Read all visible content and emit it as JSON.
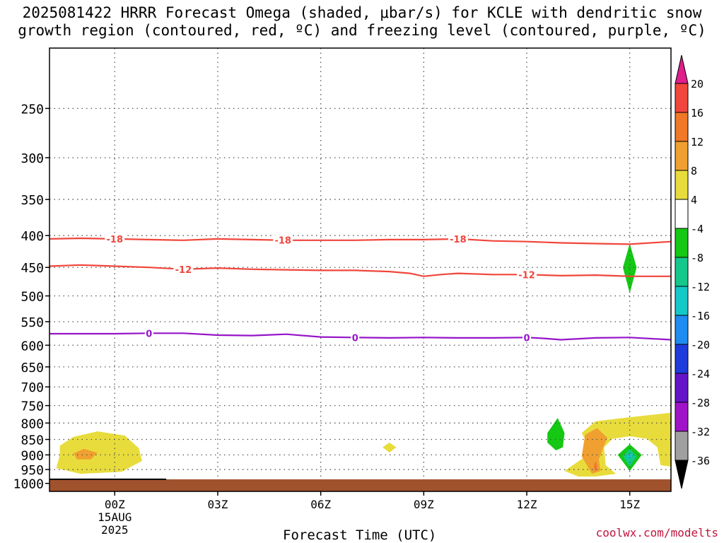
{
  "title": "2025081422 HRRR Forecast Omega (shaded, μbar/s) for KCLE with dendritic snow growth region (contoured, red, ºC) and freezing level (contoured, purple, ºC)",
  "watermark": "coolwx.com/modelts",
  "chart_data": {
    "type": "contour",
    "xlabel": "Forecast Time (UTC)",
    "ylabel": "",
    "x_range_hours": [
      -1.9,
      16.2
    ],
    "x_ticks": [
      {
        "hour": 0,
        "label": "00Z",
        "sub": [
          "15AUG",
          "2025"
        ]
      },
      {
        "hour": 3,
        "label": "03Z",
        "sub": []
      },
      {
        "hour": 6,
        "label": "06Z",
        "sub": []
      },
      {
        "hour": 9,
        "label": "09Z",
        "sub": []
      },
      {
        "hour": 12,
        "label": "12Z",
        "sub": []
      },
      {
        "hour": 15,
        "label": "15Z",
        "sub": []
      }
    ],
    "y_range_hpa": [
      1030,
      200
    ],
    "y_scale": "log",
    "y_ticks": [
      250,
      300,
      350,
      400,
      450,
      500,
      550,
      600,
      650,
      700,
      750,
      800,
      850,
      900,
      950,
      1000
    ],
    "grid": true,
    "ground_pressure_hpa": 985,
    "colorbar": {
      "labels": [
        "20",
        "16",
        "12",
        "8",
        "4",
        "-4",
        "-8",
        "-12",
        "-16",
        "-20",
        "-24",
        "-28",
        "-32",
        "-36"
      ],
      "bins": [
        {
          "range": "above 20",
          "color": "#e01e8c"
        },
        {
          "range": "16 to 20",
          "color": "#f0463c"
        },
        {
          "range": "12 to 16",
          "color": "#f07828"
        },
        {
          "range": "8 to 12",
          "color": "#f0a030"
        },
        {
          "range": "4 to 8",
          "color": "#e8dc3c"
        },
        {
          "range": "-4 to 4",
          "color": "#ffffff"
        },
        {
          "range": "-8 to -4",
          "color": "#14c814"
        },
        {
          "range": "-12 to -8",
          "color": "#14c88c"
        },
        {
          "range": "-16 to -12",
          "color": "#14c8c8"
        },
        {
          "range": "-20 to -16",
          "color": "#1e8cf0"
        },
        {
          "range": "-24 to -20",
          "color": "#1e3cdc"
        },
        {
          "range": "-28 to -24",
          "color": "#6414c8"
        },
        {
          "range": "-32 to -28",
          "color": "#a014c8"
        },
        {
          "range": "-36 to -32",
          "color": "#a0a0a0"
        },
        {
          "range": "below -36",
          "color": "#000000"
        }
      ]
    },
    "contours": [
      {
        "series": "dendritic",
        "value": -18,
        "label": "-18",
        "color": "#f0463c",
        "labels_at_hours": [
          0,
          4.9,
          10
        ],
        "points": [
          [
            -1.9,
            405
          ],
          [
            -1,
            404
          ],
          [
            0,
            405
          ],
          [
            1,
            406
          ],
          [
            2,
            407
          ],
          [
            3,
            405
          ],
          [
            4,
            406
          ],
          [
            5,
            407
          ],
          [
            6,
            407
          ],
          [
            7,
            407
          ],
          [
            8,
            406
          ],
          [
            9,
            406
          ],
          [
            10,
            405
          ],
          [
            11,
            408
          ],
          [
            12,
            409
          ],
          [
            13,
            411
          ],
          [
            14,
            412
          ],
          [
            15,
            413
          ],
          [
            16.2,
            409
          ]
        ]
      },
      {
        "series": "dendritic",
        "value": -12,
        "label": "-12",
        "color": "#f0463c",
        "labels_at_hours": [
          2,
          12
        ],
        "points": [
          [
            -1.9,
            448
          ],
          [
            -1,
            446
          ],
          [
            0,
            448
          ],
          [
            1,
            450
          ],
          [
            2,
            453
          ],
          [
            3,
            451
          ],
          [
            4,
            453
          ],
          [
            5,
            454
          ],
          [
            6,
            455
          ],
          [
            7,
            455
          ],
          [
            8,
            457
          ],
          [
            8.6,
            460
          ],
          [
            9,
            465
          ],
          [
            9.5,
            462
          ],
          [
            10,
            460
          ],
          [
            11,
            462
          ],
          [
            12,
            462
          ],
          [
            13,
            464
          ],
          [
            14,
            463
          ],
          [
            15,
            465
          ],
          [
            16.2,
            465
          ]
        ]
      },
      {
        "series": "freezing level",
        "value": 0,
        "label": "0",
        "color": "#9614c8",
        "labels_at_hours": [
          1,
          7,
          12
        ],
        "points": [
          [
            -1.9,
            575
          ],
          [
            -1,
            575
          ],
          [
            0,
            575
          ],
          [
            1,
            574
          ],
          [
            2,
            574
          ],
          [
            3,
            578
          ],
          [
            4,
            579
          ],
          [
            5,
            576
          ],
          [
            6,
            582
          ],
          [
            7,
            583
          ],
          [
            8,
            584
          ],
          [
            9,
            583
          ],
          [
            10,
            584
          ],
          [
            11,
            584
          ],
          [
            12,
            583
          ],
          [
            12.5,
            585
          ],
          [
            13,
            588
          ],
          [
            14,
            584
          ],
          [
            15,
            583
          ],
          [
            16.2,
            588
          ]
        ]
      }
    ],
    "shaded_areas": [
      {
        "value_bin": "4 to 8",
        "color": "#e8dc3c",
        "points": [
          [
            -1.6,
            870
          ],
          [
            -1.2,
            842
          ],
          [
            -0.5,
            825
          ],
          [
            0.3,
            838
          ],
          [
            0.7,
            878
          ],
          [
            0.8,
            920
          ],
          [
            0.2,
            958
          ],
          [
            -1,
            965
          ],
          [
            -1.7,
            945
          ],
          [
            -1.6,
            900
          ]
        ]
      },
      {
        "value_bin": "8 to 12",
        "color": "#f0a030",
        "points": [
          [
            -1.2,
            895
          ],
          [
            -0.9,
            880
          ],
          [
            -0.5,
            893
          ],
          [
            -0.7,
            915
          ],
          [
            -1.1,
            915
          ]
        ]
      },
      {
        "value_bin": "4 to 8",
        "color": "#e8dc3c",
        "points": [
          [
            7.8,
            875
          ],
          [
            8,
            860
          ],
          [
            8.2,
            875
          ],
          [
            8,
            892
          ]
        ]
      },
      {
        "value_bin": "-8 to -4",
        "color": "#14c814",
        "points": [
          [
            12.6,
            830
          ],
          [
            12.9,
            785
          ],
          [
            13.1,
            830
          ],
          [
            13.05,
            875
          ],
          [
            12.85,
            885
          ],
          [
            12.6,
            860
          ]
        ]
      },
      {
        "value_bin": "-8 to -4",
        "color": "#14c814",
        "points": [
          [
            14.8,
            450
          ],
          [
            15,
            412
          ],
          [
            15.2,
            450
          ],
          [
            15,
            495
          ]
        ]
      },
      {
        "value_bin": "4 to 8",
        "color": "#e8dc3c",
        "points": [
          [
            13.5,
            975
          ],
          [
            13.1,
            955
          ],
          [
            13.9,
            890
          ],
          [
            13.6,
            830
          ],
          [
            14,
            795
          ],
          [
            15,
            783
          ],
          [
            16.2,
            770
          ],
          [
            16.2,
            940
          ],
          [
            15.9,
            935
          ],
          [
            15.8,
            875
          ],
          [
            15.5,
            848
          ],
          [
            15,
            840
          ],
          [
            14.5,
            848
          ],
          [
            14.25,
            875
          ],
          [
            14.3,
            935
          ],
          [
            14.6,
            965
          ],
          [
            14,
            975
          ]
        ]
      },
      {
        "value_bin": "8 to 12",
        "color": "#f0a030",
        "points": [
          [
            13.6,
            905
          ],
          [
            13.7,
            835
          ],
          [
            14.05,
            815
          ],
          [
            14.35,
            845
          ],
          [
            14.25,
            870
          ],
          [
            14.1,
            915
          ],
          [
            14.15,
            955
          ],
          [
            13.9,
            965
          ]
        ]
      },
      {
        "value_bin": "12 to 16",
        "color": "#f07828",
        "points": [
          [
            13.95,
            940
          ],
          [
            14,
            920
          ],
          [
            14.05,
            940
          ],
          [
            14,
            960
          ]
        ]
      },
      {
        "value_bin": "-8 to -4",
        "color": "#14c814",
        "points": [
          [
            14.65,
            900
          ],
          [
            15,
            865
          ],
          [
            15.35,
            900
          ],
          [
            15,
            955
          ]
        ]
      },
      {
        "value_bin": "-12 to -8",
        "color": "#14c88c",
        "points": [
          [
            14.8,
            905
          ],
          [
            15,
            880
          ],
          [
            15.2,
            905
          ],
          [
            15,
            940
          ]
        ]
      },
      {
        "value_bin": "-16 to -12",
        "color": "#14c8c8",
        "points": [
          [
            14.93,
            905
          ],
          [
            15,
            895
          ],
          [
            15.07,
            905
          ],
          [
            15,
            915
          ]
        ]
      }
    ]
  }
}
